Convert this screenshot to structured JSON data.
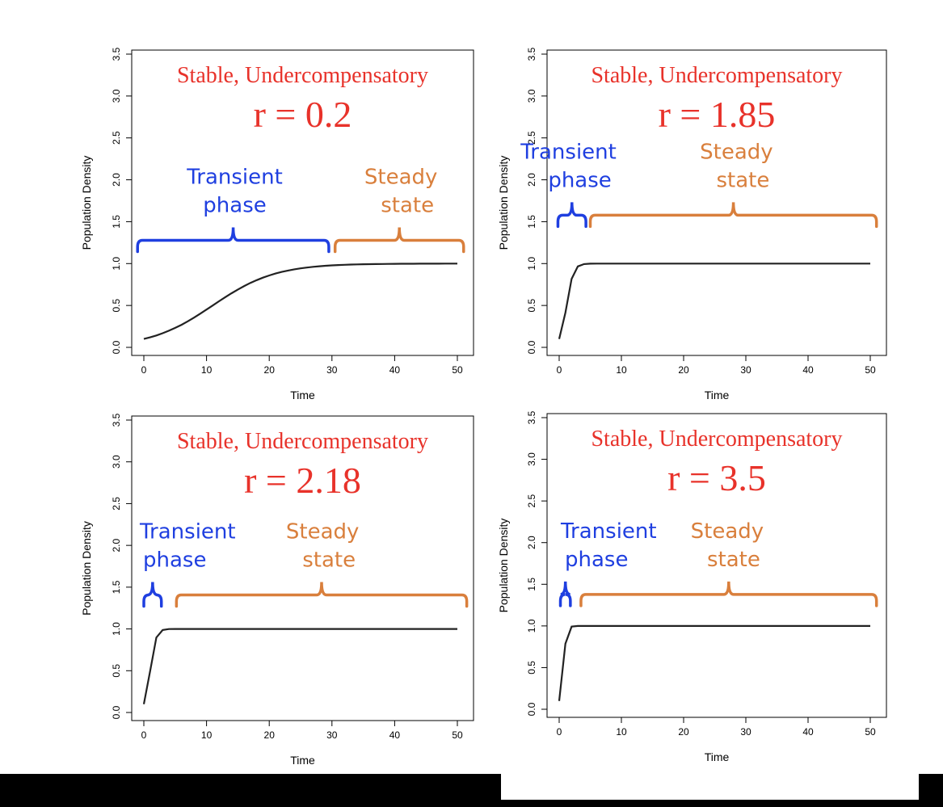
{
  "theme": {
    "title_color": "#e8322a",
    "transient_color": "#1f3fe0",
    "steady_color": "#d97f3c",
    "curve_color": "#222222",
    "axis_color": "#000000"
  },
  "chart_data": [
    {
      "type": "line",
      "title": "Stable, Undercompensatory",
      "subtitle": "r = 0.2",
      "r": 0.2,
      "xlabel": "Time",
      "ylabel": "Population Density",
      "xlim": [
        0,
        50
      ],
      "ylim": [
        0,
        3.5
      ],
      "xticks": [
        0,
        10,
        20,
        30,
        40,
        50
      ],
      "yticks": [
        0.0,
        0.5,
        1.0,
        1.5,
        2.0,
        2.5,
        3.0,
        3.5
      ],
      "ytick_labels": [
        "0.0",
        "0.5",
        "1.0",
        "1.5",
        "2.0",
        "2.5",
        "3.0",
        "3.5"
      ],
      "n0": 0.1,
      "transient_phase": {
        "label_line1": "Transient",
        "label_line2": "phase",
        "x_start": -1,
        "x_end": 29.5,
        "bracket_y": 1.2
      },
      "steady_state": {
        "label_line1": "Steady",
        "label_line2": "state",
        "x_start": 30.5,
        "x_end": 51,
        "bracket_y": 1.2
      }
    },
    {
      "type": "line",
      "title": "Stable, Undercompensatory",
      "subtitle": "r = 1.85",
      "r": 1.85,
      "xlabel": "Time",
      "ylabel": "Population Density",
      "xlim": [
        0,
        50
      ],
      "ylim": [
        0,
        3.5
      ],
      "xticks": [
        0,
        10,
        20,
        30,
        40,
        50
      ],
      "yticks": [
        0.0,
        0.5,
        1.0,
        1.5,
        2.0,
        2.5,
        3.0,
        3.5
      ],
      "ytick_labels": [
        "0.0",
        "0.5",
        "1.0",
        "1.5",
        "2.0",
        "2.5",
        "3.0",
        "3.5"
      ],
      "n0": 0.1,
      "transient_phase": {
        "label_line1": "Transient",
        "label_line2": "phase",
        "x_start": -0.2,
        "x_end": 4.3,
        "bracket_y": 1.5
      },
      "steady_state": {
        "label_line1": "Steady",
        "label_line2": "state",
        "x_start": 5,
        "x_end": 51,
        "bracket_y": 1.5
      }
    },
    {
      "type": "line",
      "title": "Stable, Undercompensatory",
      "subtitle": "r = 2.18",
      "r": 2.18,
      "xlabel": "Time",
      "ylabel": "Population Density",
      "xlim": [
        0,
        50
      ],
      "ylim": [
        0,
        3.5
      ],
      "xticks": [
        0,
        10,
        20,
        30,
        40,
        50
      ],
      "yticks": [
        0.0,
        0.5,
        1.0,
        1.5,
        2.0,
        2.5,
        3.0,
        3.5
      ],
      "ytick_labels": [
        "0.0",
        "0.5",
        "1.0",
        "1.5",
        "2.0",
        "2.5",
        "3.0",
        "3.5"
      ],
      "n0": 0.1,
      "transient_phase": {
        "label_line1": "Transient",
        "label_line2": "phase",
        "x_start": 0,
        "x_end": 2.8,
        "bracket_y": 1.33
      },
      "steady_state": {
        "label_line1": "Steady",
        "label_line2": "state",
        "x_start": 5.2,
        "x_end": 51.5,
        "bracket_y": 1.33
      }
    },
    {
      "type": "line",
      "title": "Stable, Undercompensatory",
      "subtitle": "r = 3.5",
      "r": 3.5,
      "xlabel": "Time",
      "ylabel": "Population Density",
      "xlim": [
        0,
        50
      ],
      "ylim": [
        0,
        3.5
      ],
      "xticks": [
        0,
        10,
        20,
        30,
        40,
        50
      ],
      "yticks": [
        0.0,
        0.5,
        1.0,
        1.5,
        2.0,
        2.5,
        3.0,
        3.5
      ],
      "ytick_labels": [
        "0.0",
        "0.5",
        "1.0",
        "1.5",
        "2.0",
        "2.5",
        "3.0",
        "3.5"
      ],
      "n0": 0.1,
      "transient_phase": {
        "label_line1": "Transient",
        "label_line2": "phase",
        "x_start": 0.2,
        "x_end": 1.8,
        "bracket_y": 1.3
      },
      "steady_state": {
        "label_line1": "Steady",
        "label_line2": "state",
        "x_start": 3.5,
        "x_end": 51,
        "bracket_y": 1.3
      }
    }
  ]
}
